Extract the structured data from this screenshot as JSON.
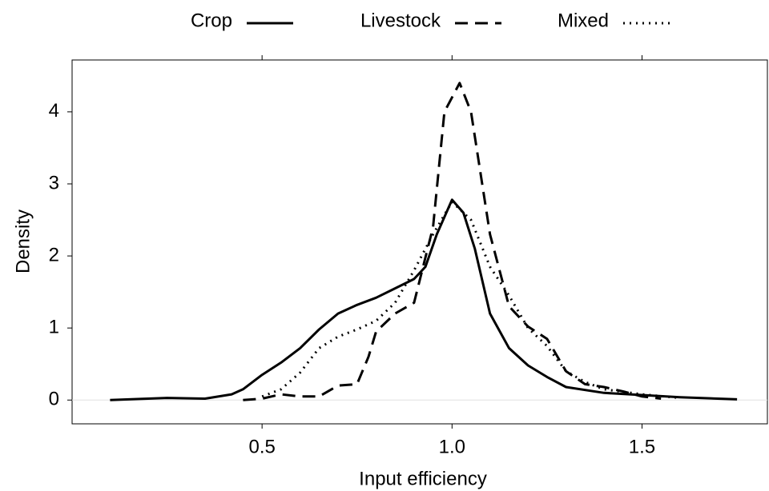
{
  "chart_data": {
    "type": "line",
    "xlabel": "Input efficiency",
    "ylabel": "Density",
    "xlim": [
      0,
      1.83
    ],
    "ylim": [
      -0.33,
      4.72
    ],
    "xticks": [
      0.5,
      {
        "value": 1.0,
        "label": "1.0"
      },
      1.5
    ],
    "yticks": [
      0,
      1,
      2,
      3,
      4
    ],
    "zero_line": true,
    "legend": "top",
    "series": [
      {
        "name": "Crop",
        "color": "#000000",
        "dash": "solid",
        "x": [
          0.1,
          0.25,
          0.35,
          0.42,
          0.45,
          0.5,
          0.55,
          0.6,
          0.65,
          0.7,
          0.75,
          0.8,
          0.85,
          0.9,
          0.93,
          0.96,
          1.0,
          1.03,
          1.06,
          1.1,
          1.15,
          1.2,
          1.25,
          1.3,
          1.4,
          1.5,
          1.6,
          1.75
        ],
        "values": [
          0,
          0.03,
          0.02,
          0.08,
          0.15,
          0.35,
          0.52,
          0.72,
          0.98,
          1.2,
          1.32,
          1.42,
          1.55,
          1.68,
          1.85,
          2.3,
          2.78,
          2.6,
          2.1,
          1.2,
          0.72,
          0.48,
          0.32,
          0.18,
          0.1,
          0.07,
          0.04,
          0.01
        ]
      },
      {
        "name": "Livestock",
        "color": "#000000",
        "dash": "dashed",
        "x": [
          0.45,
          0.5,
          0.55,
          0.6,
          0.65,
          0.7,
          0.75,
          0.78,
          0.8,
          0.85,
          0.9,
          0.95,
          0.98,
          1.02,
          1.05,
          1.1,
          1.15,
          1.2,
          1.25,
          1.3,
          1.35,
          1.4,
          1.45,
          1.5,
          1.55
        ],
        "values": [
          0,
          0.02,
          0.08,
          0.05,
          0.05,
          0.2,
          0.22,
          0.6,
          0.95,
          1.2,
          1.35,
          2.4,
          4.0,
          4.4,
          4.0,
          2.3,
          1.3,
          1.02,
          0.85,
          0.4,
          0.22,
          0.18,
          0.12,
          0.05,
          0.02
        ]
      },
      {
        "name": "Mixed",
        "color": "#000000",
        "dash": "dotted",
        "x": [
          0.5,
          0.55,
          0.6,
          0.65,
          0.7,
          0.75,
          0.8,
          0.85,
          0.9,
          0.95,
          1.0,
          1.05,
          1.1,
          1.15,
          1.2,
          1.25,
          1.3,
          1.35,
          1.4,
          1.5,
          1.6
        ],
        "values": [
          0.05,
          0.15,
          0.38,
          0.72,
          0.88,
          0.98,
          1.1,
          1.35,
          1.8,
          2.3,
          2.75,
          2.5,
          1.85,
          1.45,
          1.0,
          0.75,
          0.4,
          0.25,
          0.15,
          0.08,
          0.03
        ]
      }
    ]
  }
}
